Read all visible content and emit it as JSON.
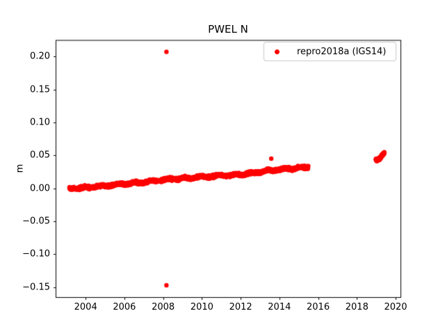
{
  "chart_data": {
    "type": "scatter",
    "title": "PWEL N",
    "xlabel": "",
    "ylabel": "m",
    "xlim": [
      2002.45,
      2020.25
    ],
    "ylim": [
      -0.165,
      0.225
    ],
    "grid": false,
    "xticks": {
      "values": [
        2004,
        2006,
        2008,
        2010,
        2012,
        2014,
        2016,
        2018,
        2020
      ],
      "labels": [
        "2004",
        "2006",
        "2008",
        "2010",
        "2012",
        "2014",
        "2016",
        "2018",
        "2020"
      ]
    },
    "yticks": {
      "values": [
        0.2,
        0.15,
        0.1,
        0.05,
        0.0,
        -0.05,
        -0.1,
        -0.15
      ],
      "labels": [
        "0.20",
        "0.15",
        "0.10",
        "0.05",
        "0.00",
        "−0.05",
        "−0.10",
        "−0.15"
      ]
    },
    "legend": {
      "label": "repro2018a (IGS14)",
      "marker_color": "#ff0000",
      "location": "upper right"
    },
    "series": [
      {
        "name": "repro2018a (IGS14)",
        "color": "#ff0000",
        "marker": "dot",
        "segments": [
          {
            "kind": "dense_band",
            "x_start": 2003.15,
            "x_end": 2015.5,
            "trend_path": [
              [
                2003.15,
                -0.0005
              ],
              [
                2004.2,
                0.0015
              ],
              [
                2005.0,
                0.004
              ],
              [
                2006.0,
                0.0065
              ],
              [
                2007.0,
                0.0095
              ],
              [
                2008.0,
                0.013
              ],
              [
                2009.0,
                0.015
              ],
              [
                2010.0,
                0.0175
              ],
              [
                2011.0,
                0.019
              ],
              [
                2012.0,
                0.021
              ],
              [
                2013.0,
                0.0245
              ],
              [
                2013.6,
                0.0275
              ],
              [
                2014.2,
                0.029
              ],
              [
                2015.0,
                0.031
              ],
              [
                2015.5,
                0.032
              ]
            ],
            "noise": 0.002,
            "points_per_year": 120
          },
          {
            "kind": "dense_band",
            "x_start": 2018.97,
            "x_end": 2019.42,
            "trend_path": [
              [
                2018.97,
                0.0455
              ],
              [
                2019.02,
                0.0435
              ],
              [
                2019.1,
                0.0445
              ],
              [
                2019.2,
                0.046
              ],
              [
                2019.3,
                0.0495
              ],
              [
                2019.38,
                0.0515
              ],
              [
                2019.42,
                0.052
              ]
            ],
            "noise": 0.0016,
            "points_per_year": 300
          }
        ],
        "outliers": [
          [
            2008.17,
            0.207
          ],
          [
            2008.17,
            -0.147
          ],
          [
            2013.58,
            0.045
          ]
        ]
      }
    ],
    "axis_color": "#000000",
    "background_color": "#ffffff"
  }
}
